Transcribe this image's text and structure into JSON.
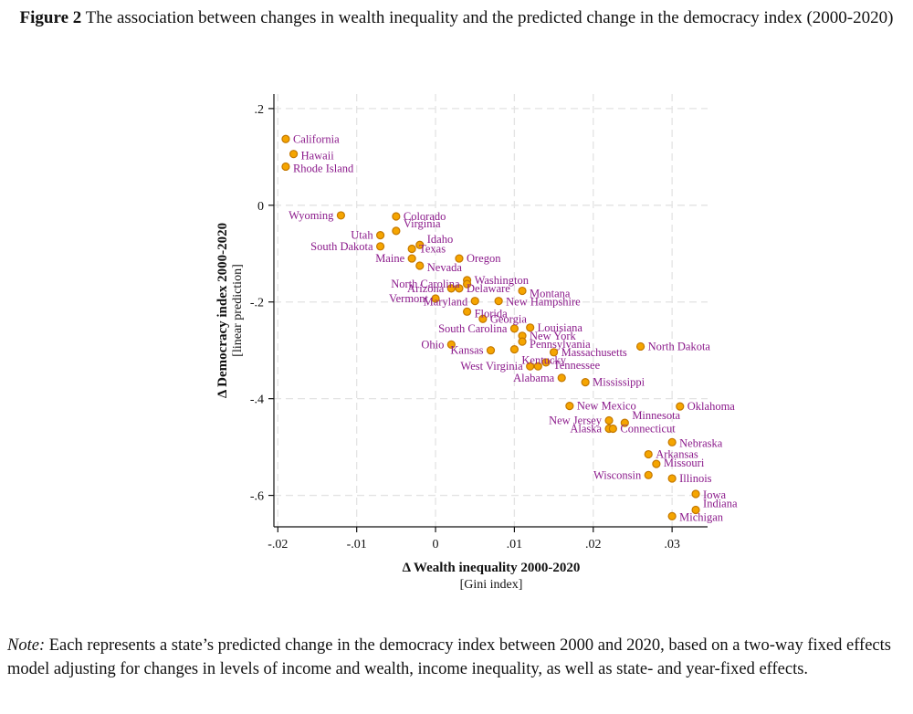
{
  "figure": {
    "label": "Figure 2",
    "title": "The association between changes in wealth inequality and the predicted change in the democracy index (2000-2020)"
  },
  "note": {
    "label": "Note:",
    "text": "Each represents a state’s predicted change in the democracy index between 2000 and 2020, based on a two-way fixed effects model adjusting for changes in levels of income and wealth, income inequality, as well as state- and year-fixed effects."
  },
  "chart_data": {
    "type": "scatter",
    "xlabel": "Δ Wealth inequality 2000-2020",
    "xlabel_sub": "[Gini index]",
    "ylabel": "Δ Democracy index 2000-2020",
    "ylabel_sub": "[linear prediction]",
    "xlim": [
      -0.0205,
      0.0345
    ],
    "ylim": [
      -0.665,
      0.23
    ],
    "x_ticks": [
      -0.02,
      -0.01,
      0,
      0.01,
      0.02,
      0.03
    ],
    "x_tick_labels": [
      "-.02",
      "-.01",
      "0",
      ".01",
      ".02",
      ".03"
    ],
    "y_ticks": [
      0.2,
      0,
      -0.2,
      -0.4,
      -0.6
    ],
    "y_tick_labels": [
      ".2",
      "0",
      "-.2",
      "-.4",
      "-.6"
    ],
    "grid": true,
    "marker_color": "#f5a500",
    "marker_edge": "#c47800",
    "label_color": "#8b1a8b",
    "points": [
      {
        "label": "California",
        "x": -0.019,
        "y": 0.137,
        "pos": "r",
        "dy": 0
      },
      {
        "label": "Hawaii",
        "x": -0.018,
        "y": 0.106,
        "pos": "r",
        "dy": 2
      },
      {
        "label": "Rhode Island",
        "x": -0.019,
        "y": 0.08,
        "pos": "r",
        "dy": 2
      },
      {
        "label": "Wyoming",
        "x": -0.012,
        "y": -0.021,
        "pos": "l",
        "dy": 0
      },
      {
        "label": "Colorado",
        "x": -0.005,
        "y": -0.023,
        "pos": "r",
        "dy": 0
      },
      {
        "label": "Virginia",
        "x": -0.005,
        "y": -0.053,
        "pos": "r",
        "dy": -8
      },
      {
        "label": "Utah",
        "x": -0.007,
        "y": -0.062,
        "pos": "l",
        "dy": 0
      },
      {
        "label": "Idaho",
        "x": -0.002,
        "y": -0.082,
        "pos": "r",
        "dy": -6
      },
      {
        "label": "South Dakota",
        "x": -0.007,
        "y": -0.085,
        "pos": "l",
        "dy": 0
      },
      {
        "label": "Texas",
        "x": -0.003,
        "y": -0.09,
        "pos": "r",
        "dy": 0
      },
      {
        "label": "Maine",
        "x": -0.003,
        "y": -0.11,
        "pos": "l",
        "dy": 0
      },
      {
        "label": "Oregon",
        "x": 0.003,
        "y": -0.11,
        "pos": "r",
        "dy": 0
      },
      {
        "label": "Nevada",
        "x": -0.002,
        "y": -0.125,
        "pos": "r",
        "dy": 2
      },
      {
        "label": "Washington",
        "x": 0.004,
        "y": -0.155,
        "pos": "r",
        "dy": 0
      },
      {
        "label": "North Carolina",
        "x": 0.004,
        "y": -0.163,
        "pos": "l",
        "dy": 0
      },
      {
        "label": "Arizona",
        "x": 0.002,
        "y": -0.172,
        "pos": "l",
        "dy": 0
      },
      {
        "label": "Delaware",
        "x": 0.003,
        "y": -0.172,
        "pos": "r",
        "dy": 0
      },
      {
        "label": "Montana",
        "x": 0.011,
        "y": -0.177,
        "pos": "r",
        "dy": 3
      },
      {
        "label": "Vermont",
        "x": 0.0,
        "y": -0.193,
        "pos": "l",
        "dy": 0
      },
      {
        "label": "Maryland",
        "x": 0.005,
        "y": -0.198,
        "pos": "l",
        "dy": 1
      },
      {
        "label": "New Hampshire",
        "x": 0.008,
        "y": -0.198,
        "pos": "r",
        "dy": 1
      },
      {
        "label": "Florida",
        "x": 0.004,
        "y": -0.22,
        "pos": "r",
        "dy": 2
      },
      {
        "label": "Georgia",
        "x": 0.006,
        "y": -0.235,
        "pos": "r",
        "dy": 0
      },
      {
        "label": "Louisiana",
        "x": 0.012,
        "y": -0.253,
        "pos": "r",
        "dy": 0
      },
      {
        "label": "South Carolina",
        "x": 0.01,
        "y": -0.255,
        "pos": "l",
        "dy": 0
      },
      {
        "label": "New York",
        "x": 0.011,
        "y": -0.27,
        "pos": "r",
        "dy": 0
      },
      {
        "label": "Pennsylvania",
        "x": 0.011,
        "y": -0.282,
        "pos": "r",
        "dy": 3
      },
      {
        "label": "Ohio",
        "x": 0.002,
        "y": -0.288,
        "pos": "l",
        "dy": 0
      },
      {
        "label": "Kansas",
        "x": 0.007,
        "y": -0.3,
        "pos": "l",
        "dy": 0
      },
      {
        "label": "Massachusetts",
        "x": 0.015,
        "y": -0.304,
        "pos": "r",
        "dy": 0
      },
      {
        "label": "Kentucky",
        "x": 0.01,
        "y": -0.298,
        "pos": "r",
        "dy": 12
      },
      {
        "label": "Tennessee",
        "x": 0.014,
        "y": -0.325,
        "pos": "r",
        "dy": 3
      },
      {
        "label": "West Virginia",
        "x": 0.012,
        "y": -0.333,
        "pos": "l",
        "dy": 0
      },
      {
        "label": "",
        "x": 0.013,
        "y": -0.333,
        "pos": "r",
        "dy": 0
      },
      {
        "label": "Alabama",
        "x": 0.016,
        "y": -0.357,
        "pos": "l",
        "dy": 0
      },
      {
        "label": "Mississippi",
        "x": 0.019,
        "y": -0.366,
        "pos": "r",
        "dy": 0
      },
      {
        "label": "North Dakota",
        "x": 0.026,
        "y": -0.292,
        "pos": "r",
        "dy": 0
      },
      {
        "label": "New Mexico",
        "x": 0.017,
        "y": -0.415,
        "pos": "r",
        "dy": 0
      },
      {
        "label": "Oklahoma",
        "x": 0.031,
        "y": -0.416,
        "pos": "r",
        "dy": 0
      },
      {
        "label": "Minnesota",
        "x": 0.024,
        "y": -0.45,
        "pos": "r",
        "dy": -8
      },
      {
        "label": "New Jersey",
        "x": 0.022,
        "y": -0.445,
        "pos": "l",
        "dy": 0
      },
      {
        "label": "Alaska",
        "x": 0.022,
        "y": -0.462,
        "pos": "l",
        "dy": 0
      },
      {
        "label": "Connecticut",
        "x": 0.0225,
        "y": -0.462,
        "pos": "r",
        "dy": 0
      },
      {
        "label": "Nebraska",
        "x": 0.03,
        "y": -0.49,
        "pos": "r",
        "dy": 1
      },
      {
        "label": "Arkansas",
        "x": 0.027,
        "y": -0.515,
        "pos": "r",
        "dy": 0
      },
      {
        "label": "Missouri",
        "x": 0.028,
        "y": -0.535,
        "pos": "r",
        "dy": -1
      },
      {
        "label": "Wisconsin",
        "x": 0.027,
        "y": -0.558,
        "pos": "l",
        "dy": 0
      },
      {
        "label": "Illinois",
        "x": 0.03,
        "y": -0.565,
        "pos": "r",
        "dy": 0
      },
      {
        "label": "Iowa",
        "x": 0.033,
        "y": -0.597,
        "pos": "r",
        "dy": 1
      },
      {
        "label": "Indiana",
        "x": 0.033,
        "y": -0.63,
        "pos": "r",
        "dy": -7
      },
      {
        "label": "Michigan",
        "x": 0.03,
        "y": -0.643,
        "pos": "r",
        "dy": 1
      }
    ]
  }
}
